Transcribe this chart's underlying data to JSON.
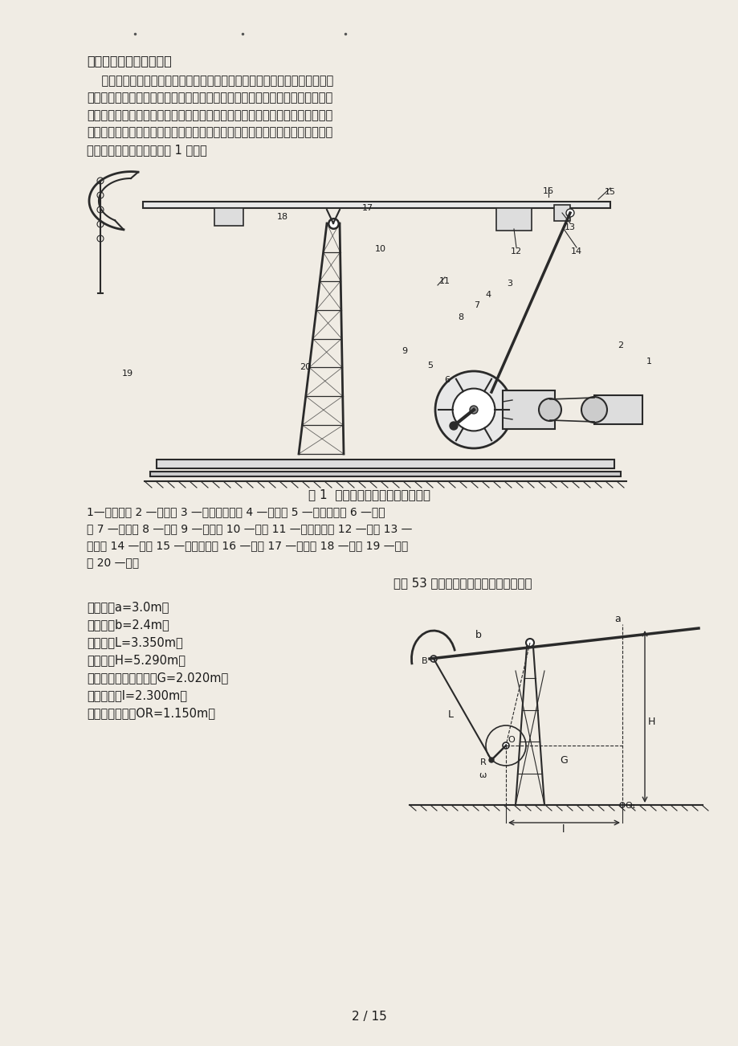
{
  "bg_color": "#f0ece4",
  "title_text": "游梁式抽油机的工作原理",
  "para_lines": [
    "    游梁式抽油机是有杆抽油系统的地面驱动装置，它由动力机、减速器、机架",
    "和连杆机构等部分组成。减速器将动力机的高速旋转运动变为曲柄轴的低速旋转",
    "运动；曲柄轴的低速旋转圆周运动由连杆机构变为驴头悬绳器的上下往复直线运",
    "动，从而带动抽油泵进行抽油工作。游梁式抽油机是机械采油设备中问世最早的",
    "抽油机机种，基本结构如图 1 所示："
  ],
  "fig_caption": "图 1  常规游梁式抽油机基本机构图",
  "legend_lines": [
    "1—刹车装置 2 —电动机 3 —减速器皮带轮 4 —减速器 5 —动力输入轴 6 —中间",
    "轴 7 —输出轴 8 —曲柄 9 —曲柄销 10 —支架 11 —曲柄平衡块 12 —连杆 13 —",
    "横梁轴 14 —横梁 15 —游梁平衡块 16 —游梁 17 —支架轴 18 —驴头 19 —悬绳",
    "器 20 —底座"
  ],
  "diag_title": "常规 53 型游梁式抽油机结构尺寸示意图",
  "specs": [
    "前臂长：a=3.0m；",
    "后臂长：b=2.4m；",
    "连杆长：L=3.350m；",
    "支架高：H=5.290m；",
    "减速器输出轴中心高：G=2.020m；",
    "水平中距：l=2.300m；",
    "曲柄旋转半径：OR=1.150m。"
  ],
  "page_num": "2 / 15",
  "text_color": "#1a1a1a",
  "line_color": "#2a2a2a"
}
